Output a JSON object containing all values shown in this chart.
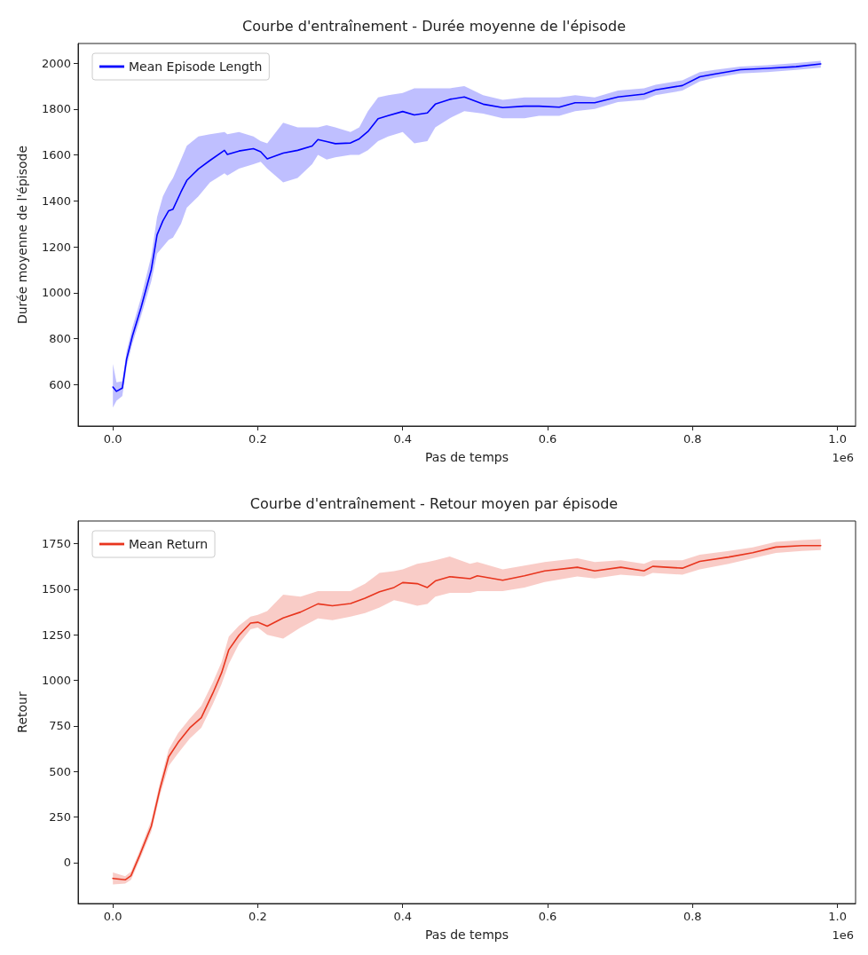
{
  "chart_data": [
    {
      "type": "line",
      "title": "Courbe d'entraînement - Durée moyenne de l'épisode",
      "xlabel": "Pas de temps",
      "ylabel": "Durée moyenne de l'épisode",
      "legend": "top left",
      "annotations": [
        "1e6"
      ],
      "xlim": [
        -0.048,
        1.025
      ],
      "ylim": [
        420,
        2085
      ],
      "xticks": [
        {
          "value": 0,
          "label": "0.0"
        },
        {
          "value": 0.2,
          "label": "0.2"
        },
        {
          "value": 0.4,
          "label": "0.4"
        },
        {
          "value": 0.6,
          "label": "0.6"
        },
        {
          "value": 0.8,
          "label": "0.8"
        },
        {
          "value": 1,
          "label": "1.0"
        }
      ],
      "yticks": [
        600,
        800,
        1000,
        1200,
        1400,
        1600,
        1800,
        2000
      ],
      "x": [
        0,
        0.005,
        0.013,
        0.019,
        0.027,
        0.039,
        0.053,
        0.061,
        0.069,
        0.077,
        0.083,
        0.094,
        0.102,
        0.118,
        0.134,
        0.154,
        0.158,
        0.174,
        0.194,
        0.204,
        0.213,
        0.235,
        0.255,
        0.275,
        0.283,
        0.295,
        0.307,
        0.328,
        0.34,
        0.352,
        0.366,
        0.38,
        0.4,
        0.416,
        0.434,
        0.445,
        0.465,
        0.485,
        0.511,
        0.538,
        0.568,
        0.588,
        0.616,
        0.638,
        0.665,
        0.697,
        0.733,
        0.749,
        0.786,
        0.81,
        0.83,
        0.866,
        0.903,
        0.943,
        0.977
      ],
      "series": [
        {
          "name": "Mean Episode Length",
          "color": "#0000ff",
          "values": [
            590,
            571,
            585,
            712,
            812,
            937,
            1100,
            1252,
            1313,
            1357,
            1364,
            1439,
            1489,
            1539,
            1576,
            1620,
            1602,
            1617,
            1627,
            1614,
            1583,
            1608,
            1620,
            1639,
            1667,
            1658,
            1649,
            1652,
            1670,
            1702,
            1758,
            1771,
            1789,
            1774,
            1783,
            1821,
            1842,
            1852,
            1821,
            1806,
            1812,
            1812,
            1808,
            1827,
            1827,
            1852,
            1865,
            1883,
            1902,
            1940,
            1952,
            1971,
            1977,
            1984,
            1996
          ],
          "lower": [
            500,
            530,
            550,
            680,
            780,
            900,
            1050,
            1170,
            1200,
            1230,
            1240,
            1300,
            1370,
            1420,
            1480,
            1520,
            1510,
            1540,
            1560,
            1570,
            1540,
            1480,
            1500,
            1560,
            1600,
            1580,
            1590,
            1600,
            1600,
            1620,
            1660,
            1680,
            1700,
            1650,
            1660,
            1720,
            1760,
            1790,
            1780,
            1760,
            1760,
            1770,
            1770,
            1790,
            1800,
            1830,
            1840,
            1860,
            1880,
            1920,
            1935,
            1955,
            1960,
            1970,
            1980
          ],
          "upper": [
            690,
            610,
            615,
            745,
            850,
            980,
            1160,
            1330,
            1420,
            1470,
            1500,
            1580,
            1640,
            1680,
            1690,
            1700,
            1690,
            1700,
            1680,
            1660,
            1650,
            1740,
            1720,
            1720,
            1720,
            1730,
            1720,
            1700,
            1720,
            1790,
            1850,
            1860,
            1870,
            1890,
            1890,
            1890,
            1890,
            1900,
            1860,
            1840,
            1850,
            1850,
            1850,
            1860,
            1850,
            1880,
            1890,
            1905,
            1925,
            1960,
            1970,
            1985,
            1990,
            2000,
            2010
          ]
        }
      ]
    },
    {
      "type": "line",
      "title": "Courbe d'entraînement - Retour moyen par épisode",
      "xlabel": "Pas de temps",
      "ylabel": "Retour",
      "legend": "top left",
      "annotations": [
        "1e6"
      ],
      "xlim": [
        -0.048,
        1.025
      ],
      "ylim": [
        -225,
        1875
      ],
      "xticks": [
        {
          "value": 0,
          "label": "0.0"
        },
        {
          "value": 0.2,
          "label": "0.2"
        },
        {
          "value": 0.4,
          "label": "0.4"
        },
        {
          "value": 0.6,
          "label": "0.6"
        },
        {
          "value": 0.8,
          "label": "0.8"
        },
        {
          "value": 1,
          "label": "1.0"
        }
      ],
      "yticks": [
        0,
        250,
        500,
        750,
        1000,
        1250,
        1500,
        1750
      ],
      "x": [
        0,
        0.017,
        0.025,
        0.037,
        0.053,
        0.065,
        0.077,
        0.09,
        0.106,
        0.122,
        0.138,
        0.15,
        0.16,
        0.174,
        0.19,
        0.2,
        0.213,
        0.235,
        0.259,
        0.283,
        0.303,
        0.328,
        0.348,
        0.368,
        0.388,
        0.4,
        0.42,
        0.434,
        0.445,
        0.465,
        0.493,
        0.503,
        0.538,
        0.568,
        0.596,
        0.641,
        0.665,
        0.701,
        0.733,
        0.745,
        0.786,
        0.81,
        0.85,
        0.883,
        0.915,
        0.951,
        0.977
      ],
      "series": [
        {
          "name": "Mean Return",
          "color": "#e8351e",
          "values": [
            -87,
            -95,
            -72,
            40,
            199,
            405,
            580,
            659,
            739,
            795,
            930,
            1041,
            1168,
            1248,
            1315,
            1319,
            1298,
            1343,
            1375,
            1420,
            1410,
            1422,
            1451,
            1486,
            1510,
            1537,
            1531,
            1510,
            1546,
            1569,
            1558,
            1574,
            1550,
            1574,
            1601,
            1621,
            1601,
            1621,
            1601,
            1626,
            1616,
            1653,
            1677,
            1701,
            1732,
            1740,
            1740
          ],
          "lower": [
            -120,
            -115,
            -95,
            15,
            170,
            370,
            530,
            600,
            680,
            740,
            870,
            980,
            1090,
            1200,
            1280,
            1290,
            1250,
            1230,
            1290,
            1340,
            1330,
            1350,
            1370,
            1400,
            1440,
            1430,
            1410,
            1420,
            1460,
            1480,
            1480,
            1490,
            1490,
            1510,
            1540,
            1570,
            1560,
            1580,
            1570,
            1590,
            1580,
            1610,
            1640,
            1670,
            1700,
            1710,
            1715
          ],
          "upper": [
            -55,
            -75,
            -50,
            65,
            230,
            440,
            620,
            710,
            790,
            860,
            990,
            1100,
            1240,
            1300,
            1350,
            1360,
            1380,
            1470,
            1460,
            1490,
            1490,
            1490,
            1530,
            1590,
            1600,
            1610,
            1640,
            1650,
            1660,
            1680,
            1640,
            1650,
            1610,
            1630,
            1650,
            1670,
            1650,
            1660,
            1640,
            1660,
            1660,
            1690,
            1710,
            1730,
            1760,
            1770,
            1775
          ]
        }
      ]
    }
  ]
}
